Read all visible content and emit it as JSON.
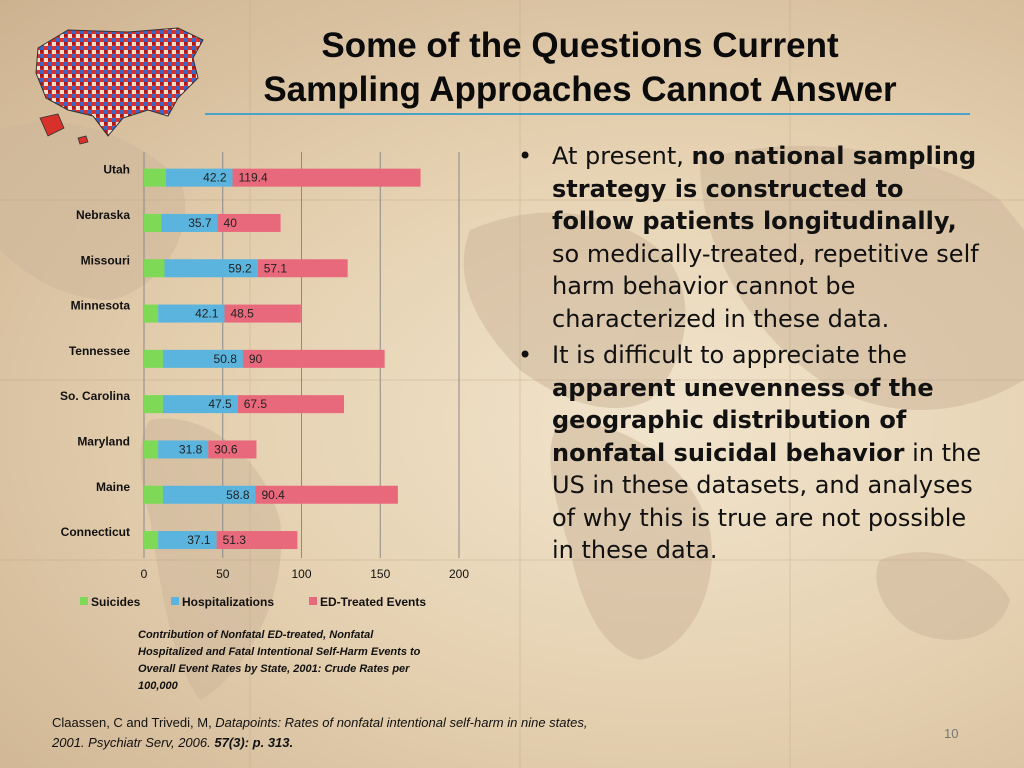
{
  "title_line1": "Some of the Questions Current",
  "title_line2": "Sampling Approaches Cannot Answer",
  "bullets": [
    {
      "text_before": "At present, ",
      "bold": "no national sampling strategy is constructed to follow patients longitudinally,",
      "text_after": " so medically-treated, repetitive self harm behavior cannot be characterized in these data."
    },
    {
      "text_before": "It is difficult to appreciate the ",
      "bold": "apparent unevenness of the geographic distribution of nonfatal suicidal behavior",
      "text_after": " in the US in these datasets, and analyses of why this is true are not possible in these data."
    }
  ],
  "caption": "Contribution of Nonfatal ED-treated, Nonfatal Hospitalized and Fatal Intentional Self-Harm Events to Overall Event Rates by State, 2001: Crude Rates per 100,000",
  "citation": {
    "authors": "Claassen, C and Trivedi, M, ",
    "title": "Datapoints: Rates of nonfatal intentional self-harm in nine states, 2001. Psychiatr Serv, 2006. ",
    "volume": "57(3): p. 313."
  },
  "page_number": "10",
  "colors": {
    "suicides": "#7ed957",
    "hospitalizations": "#5ab4dd",
    "ed": "#e8697c",
    "title_rule": "#4aa3c7"
  },
  "chart_data": {
    "type": "bar",
    "orientation": "horizontal",
    "stacked": true,
    "categories": [
      "Utah",
      "Nebraska",
      "Missouri",
      "Minnesota",
      "Tennessee",
      "So. Carolina",
      "Maryland",
      "Maine",
      "Connecticut"
    ],
    "series": [
      {
        "name": "Suicides",
        "values": [
          14,
          11,
          13,
          9,
          12,
          12,
          9,
          12,
          9
        ],
        "labels_shown": false
      },
      {
        "name": "Hospitalizations",
        "values": [
          42.2,
          35.7,
          59.2,
          42.1,
          50.8,
          47.5,
          31.8,
          58.8,
          37.1
        ],
        "labels_shown": true
      },
      {
        "name": "ED-Treated Events",
        "values": [
          119.4,
          40,
          57.1,
          48.5,
          90,
          67.5,
          30.6,
          90.4,
          51.3
        ],
        "labels_shown": true
      }
    ],
    "xlim": [
      0,
      200
    ],
    "xticks": [
      0,
      50,
      100,
      150,
      200
    ],
    "xtick_labels": [
      "0",
      "50",
      "100",
      "150",
      "200"
    ],
    "grid": true,
    "legend": "bottom"
  }
}
